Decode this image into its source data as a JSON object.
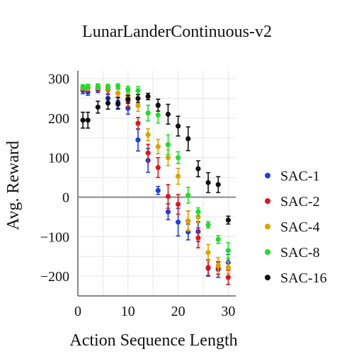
{
  "chart_data": {
    "type": "scatter",
    "title": "LunarLanderContinuous-v2",
    "xlabel": "Action Sequence Length",
    "ylabel": "Avg. Reward",
    "xlim": [
      0,
      31.5
    ],
    "ylim": [
      -250,
      320
    ],
    "xticks": [
      0,
      10,
      20,
      30
    ],
    "yticks": [
      -200,
      -100,
      0,
      100,
      200,
      300
    ],
    "xtick_labels": [
      "0",
      "10",
      "20",
      "30"
    ],
    "ytick_labels": [
      "−200",
      "−100",
      "0",
      "100",
      "200",
      "300"
    ],
    "grid": true,
    "zero_line": true,
    "legend_position": "right",
    "series": [
      {
        "name": "SAC-1",
        "color": "#1f3fd6",
        "x": [
          1,
          2,
          4,
          6,
          8,
          10,
          12,
          14,
          16,
          18,
          20,
          22,
          24,
          26,
          28,
          30
        ],
        "y": [
          270,
          266,
          273,
          250,
          235,
          225,
          145,
          93,
          17,
          -37,
          -63,
          -88,
          -87,
          -180,
          -183,
          -165
        ],
        "yerr": [
          8,
          8,
          8,
          10,
          10,
          15,
          28,
          30,
          10,
          20,
          35,
          20,
          25,
          20,
          20,
          20
        ]
      },
      {
        "name": "SAC-2",
        "color": "#d71920",
        "x": [
          1,
          2,
          4,
          6,
          8,
          10,
          12,
          14,
          16,
          18,
          20,
          22,
          24,
          26,
          28,
          30
        ],
        "y": [
          276,
          276,
          276,
          272,
          263,
          245,
          187,
          112,
          75,
          2,
          -18,
          -60,
          -103,
          -178,
          -180,
          -203
        ],
        "yerr": [
          8,
          8,
          8,
          10,
          12,
          15,
          15,
          22,
          25,
          30,
          25,
          25,
          25,
          20,
          15,
          18
        ]
      },
      {
        "name": "SAC-4",
        "color": "#d9a400",
        "x": [
          1,
          2,
          4,
          6,
          8,
          10,
          12,
          14,
          16,
          18,
          20,
          22,
          24,
          26,
          28,
          30
        ],
        "y": [
          278,
          277,
          279,
          278,
          263,
          255,
          232,
          158,
          128,
          100,
          53,
          -60,
          -50,
          -140,
          -173,
          -178
        ],
        "yerr": [
          6,
          6,
          6,
          8,
          10,
          12,
          15,
          15,
          18,
          20,
          20,
          25,
          15,
          20,
          20,
          15
        ]
      },
      {
        "name": "SAC-8",
        "color": "#27d92e",
        "x": [
          1,
          2,
          4,
          6,
          8,
          10,
          12,
          14,
          16,
          18,
          20,
          22,
          24,
          26,
          28,
          30
        ],
        "y": [
          279,
          280,
          281,
          279,
          281,
          273,
          270,
          213,
          208,
          133,
          100,
          5,
          -37,
          -70,
          -107,
          -135
        ],
        "yerr": [
          6,
          6,
          6,
          6,
          6,
          8,
          10,
          20,
          20,
          25,
          15,
          20,
          10,
          8,
          10,
          20
        ]
      },
      {
        "name": "SAC-16",
        "color": "#111111",
        "x": [
          1,
          2,
          4,
          6,
          8,
          10,
          12,
          14,
          16,
          18,
          20,
          22,
          24,
          26,
          28,
          30
        ],
        "y": [
          195,
          195,
          228,
          238,
          238,
          248,
          250,
          255,
          233,
          210,
          180,
          148,
          72,
          37,
          32,
          -58
        ],
        "yerr": [
          20,
          20,
          15,
          15,
          15,
          10,
          10,
          8,
          15,
          25,
          25,
          30,
          20,
          25,
          20,
          10
        ]
      }
    ]
  }
}
